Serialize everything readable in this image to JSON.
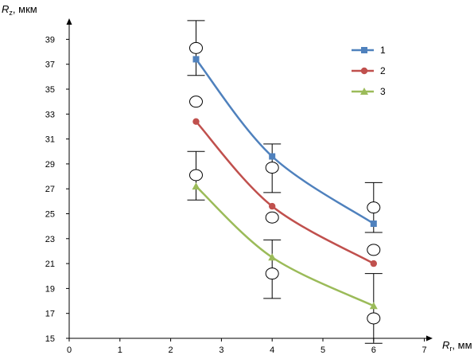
{
  "chart_data": {
    "type": "line",
    "title": "",
    "xlabel": {
      "symbol": "R",
      "subscript": "r",
      "unit": "мм"
    },
    "ylabel": {
      "symbol": "R",
      "subscript": "z",
      "unit": "мкм"
    },
    "xlim": [
      0,
      7
    ],
    "ylim": [
      15,
      41
    ],
    "x_ticks": [
      0,
      1,
      2,
      3,
      4,
      5,
      6,
      7
    ],
    "y_ticks": [
      15,
      17,
      19,
      21,
      23,
      25,
      27,
      29,
      31,
      33,
      35,
      37,
      39
    ],
    "grid": false,
    "legend_position": "top-right",
    "series": [
      {
        "name": "1",
        "color": "#4f81bd",
        "marker": "square",
        "x": [
          2.5,
          4,
          6
        ],
        "y": [
          37.4,
          29.6,
          24.2
        ],
        "error_low": [
          36.1,
          26.7,
          23.5
        ],
        "error_high": [
          40.5,
          30.6,
          27.5
        ],
        "open_circles": [
          38.3,
          28.7,
          25.5
        ]
      },
      {
        "name": "2",
        "color": "#c0504d",
        "marker": "circle",
        "x": [
          2.5,
          4,
          6
        ],
        "y": [
          32.4,
          25.6,
          21.0
        ],
        "error_low": null,
        "error_high": null,
        "open_circles": [
          34.0,
          24.7,
          22.1
        ]
      },
      {
        "name": "3",
        "color": "#9bbb59",
        "marker": "triangle",
        "x": [
          2.5,
          4,
          6
        ],
        "y": [
          27.2,
          21.5,
          17.6
        ],
        "error_low": [
          26.1,
          18.2,
          14.6
        ],
        "error_high": [
          30.0,
          22.9,
          20.2
        ],
        "open_circles": [
          28.1,
          20.2,
          16.6
        ]
      }
    ]
  }
}
